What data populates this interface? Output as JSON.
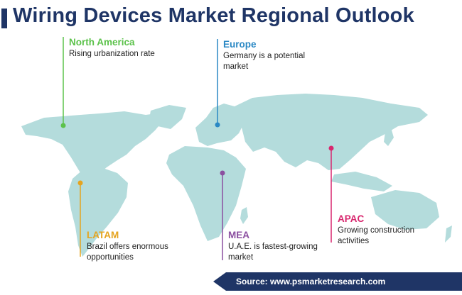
{
  "title": "Wiring Devices Market Regional Outlook",
  "colors": {
    "title": "#1f3566",
    "map": "#b4dcdc",
    "north_america": "#5cc24b",
    "europe": "#2a88c4",
    "latam": "#e5a41f",
    "mea": "#8b4fa0",
    "apac": "#d8276e"
  },
  "regions": {
    "north_america": {
      "name": "North America",
      "description": [
        "Rising urbanization rate"
      ]
    },
    "europe": {
      "name": "Europe",
      "description": [
        "Germany is a potential",
        "market"
      ]
    },
    "latam": {
      "name": "LATAM",
      "description": [
        "Brazil offers enormous",
        "opportunities"
      ]
    },
    "mea": {
      "name": "MEA",
      "description": [
        "U.A.E. is fastest-growing",
        "market"
      ]
    },
    "apac": {
      "name": "APAC",
      "description": [
        "Growing construction",
        "activities"
      ]
    }
  },
  "source": "Source: www.psmarketresearch.com"
}
